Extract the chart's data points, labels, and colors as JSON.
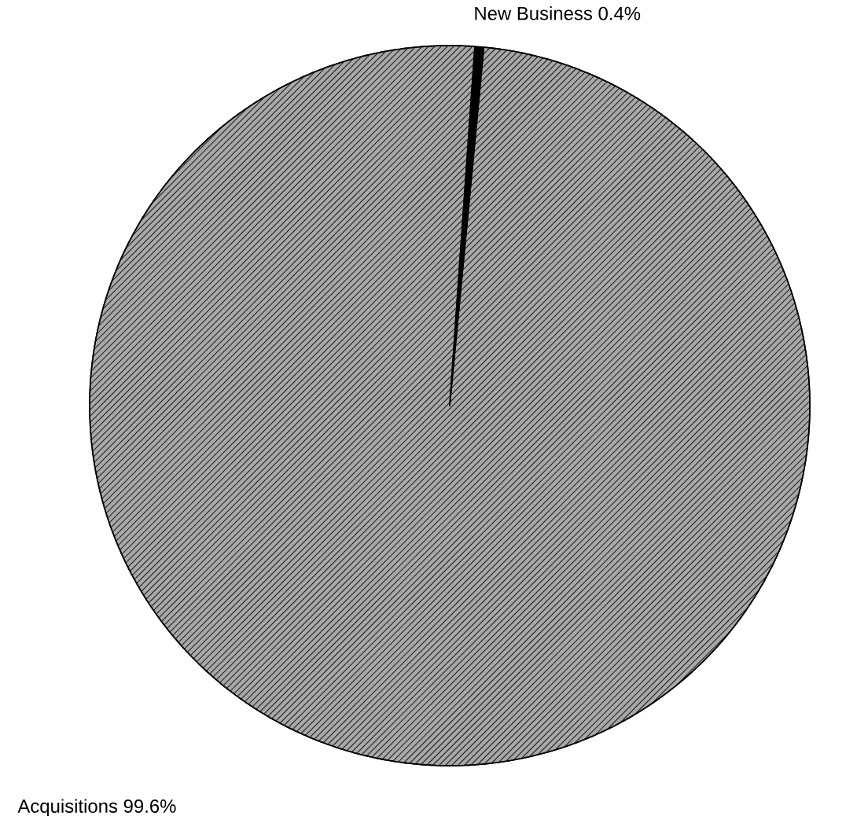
{
  "chart_data": {
    "type": "pie",
    "categories": [
      "New Business",
      "Acquisitions"
    ],
    "values": [
      0.4,
      99.6
    ],
    "value_labels": [
      "0.4%",
      "99.6%"
    ],
    "colors": [
      "#000000",
      "#a8a8a8"
    ],
    "legend": false
  }
}
